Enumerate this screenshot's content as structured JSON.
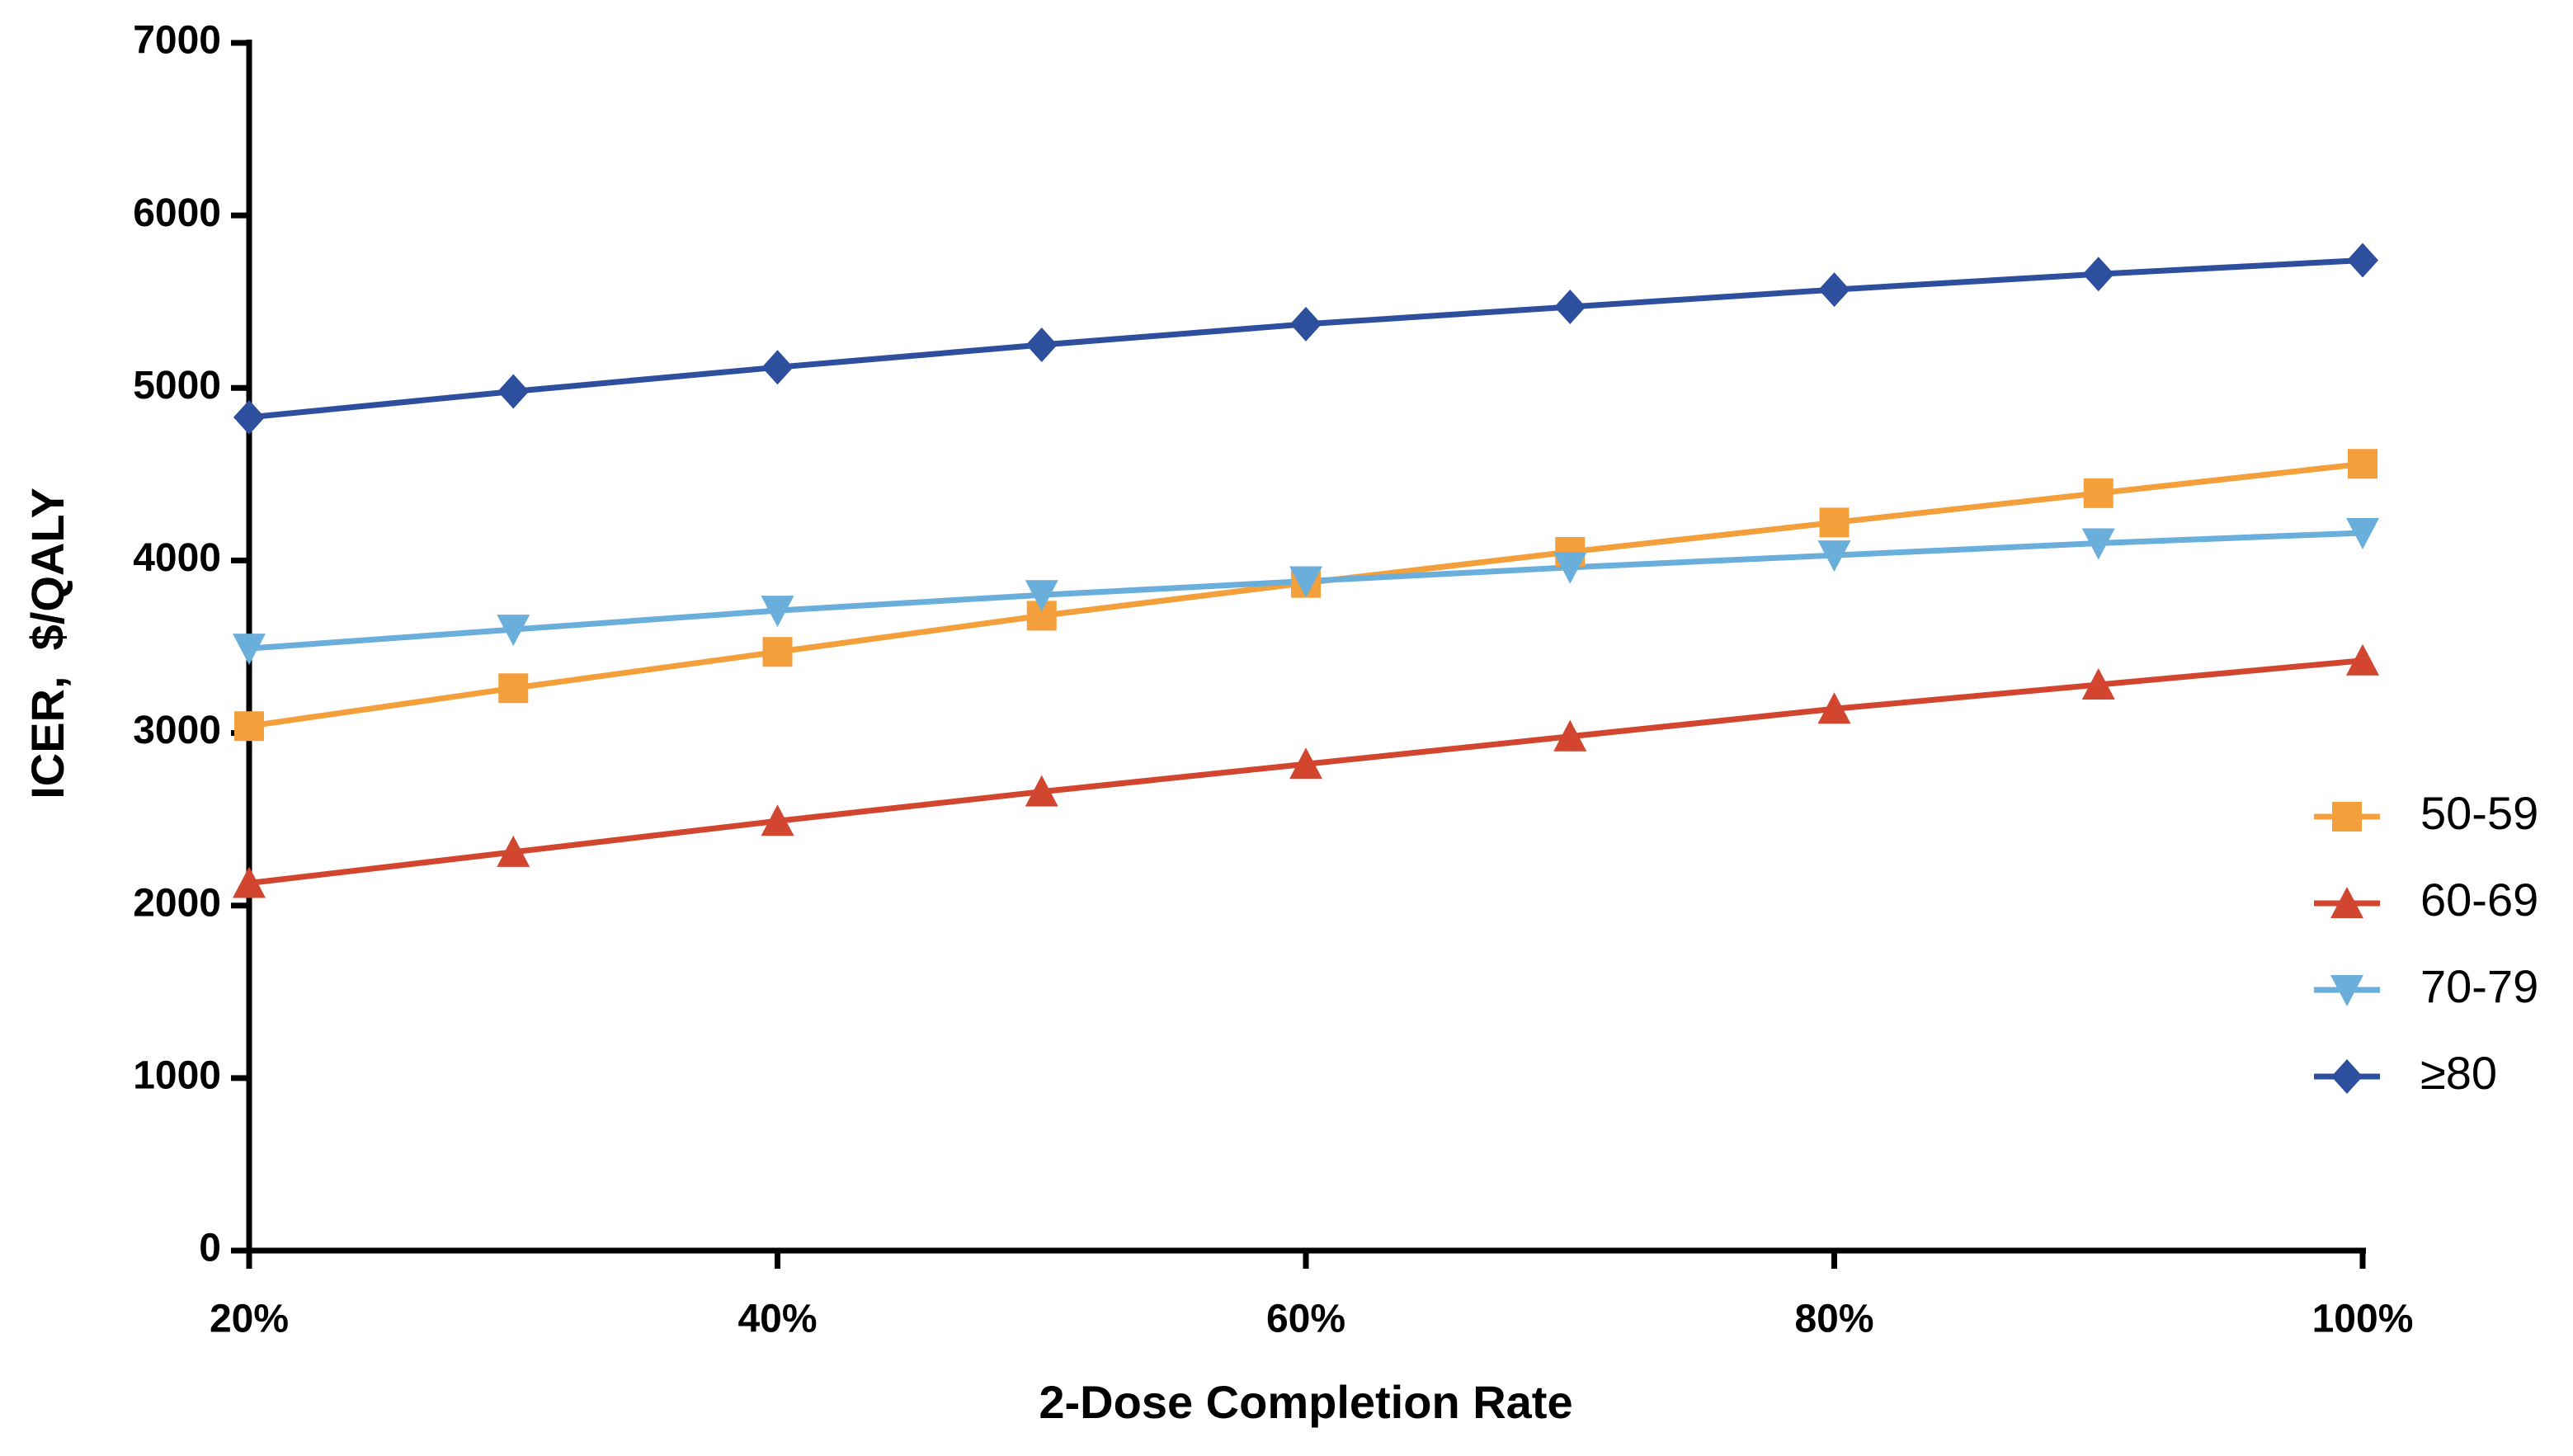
{
  "chart_data": {
    "type": "line",
    "x_label": "2-Dose Completion Rate",
    "y_label": "ICER,  $/QALY",
    "x": [
      20,
      30,
      40,
      50,
      60,
      70,
      80,
      90,
      100
    ],
    "xlim": [
      20,
      100
    ],
    "xticks": [
      {
        "value": 20,
        "label": "20%"
      },
      {
        "value": 40,
        "label": "40%"
      },
      {
        "value": 60,
        "label": "60%"
      },
      {
        "value": 80,
        "label": "80%"
      },
      {
        "value": 100,
        "label": "100%"
      }
    ],
    "ylim": [
      0,
      7000
    ],
    "yticks": [
      0,
      1000,
      2000,
      3000,
      4000,
      5000,
      6000,
      7000
    ],
    "legend": "right",
    "series": [
      {
        "name": "50-59",
        "color": "#f3a03c",
        "marker": "square",
        "values": [
          3040,
          3260,
          3470,
          3680,
          3870,
          4050,
          4220,
          4390,
          4560
        ]
      },
      {
        "name": "60-69",
        "color": "#d2452e",
        "marker": "triangle-up",
        "values": [
          2130,
          2310,
          2490,
          2660,
          2820,
          2980,
          3140,
          3280,
          3420
        ]
      },
      {
        "name": "70-79",
        "color": "#6aaedc",
        "marker": "triangle-down",
        "values": [
          3490,
          3600,
          3710,
          3800,
          3880,
          3960,
          4030,
          4100,
          4160
        ]
      },
      {
        "name": "≥80",
        "color": "#2e4f9d",
        "marker": "diamond",
        "values": [
          4830,
          4980,
          5120,
          5250,
          5370,
          5470,
          5570,
          5660,
          5740
        ]
      }
    ]
  }
}
